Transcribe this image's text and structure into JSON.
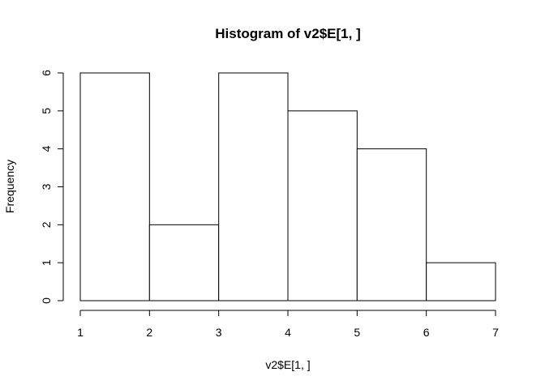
{
  "chart_data": {
    "type": "bar",
    "title": "Histogram of v2$E[1, ]",
    "xlabel": "v2$E[1, ]",
    "ylabel": "Frequency",
    "bins": [
      [
        1,
        2
      ],
      [
        2,
        3
      ],
      [
        3,
        4
      ],
      [
        4,
        5
      ],
      [
        5,
        6
      ],
      [
        6,
        7
      ]
    ],
    "values": [
      6,
      2,
      6,
      5,
      4,
      1
    ],
    "xlim": [
      1,
      7
    ],
    "ylim": [
      0,
      6
    ],
    "x_ticks": [
      1,
      2,
      3,
      4,
      5,
      6,
      7
    ],
    "y_ticks": [
      0,
      1,
      2,
      3,
      4,
      5,
      6
    ],
    "grid": false,
    "bar_fill": "#ffffff",
    "bar_stroke": "#000000"
  }
}
